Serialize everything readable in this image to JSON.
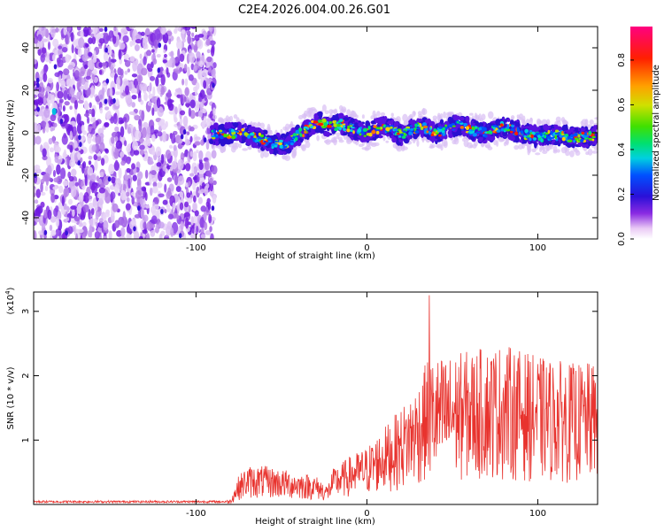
{
  "title": "C2E4.2026.004.00.26.G01",
  "chart_data": [
    {
      "type": "heatmap",
      "xlabel": "Height of straight line (km)",
      "ylabel": "Frequency (Hz)",
      "xlim": [
        -195,
        135
      ],
      "ylim": [
        -50,
        50
      ],
      "xticks": [
        -100,
        0,
        100
      ],
      "yticks": [
        -40,
        -20,
        0,
        20,
        40
      ],
      "noise_region_x": [
        -195,
        -89
      ],
      "signal_track_freq_hz": [
        [
          -92,
          0
        ],
        [
          -85,
          -1
        ],
        [
          -75,
          0
        ],
        [
          -65,
          -2
        ],
        [
          -55,
          -5
        ],
        [
          -50,
          -6
        ],
        [
          -45,
          -4
        ],
        [
          -40,
          -1
        ],
        [
          -33,
          3
        ],
        [
          -28,
          5
        ],
        [
          -22,
          3
        ],
        [
          -15,
          4
        ],
        [
          -8,
          2
        ],
        [
          0,
          0
        ],
        [
          10,
          3
        ],
        [
          20,
          -1
        ],
        [
          25,
          1
        ],
        [
          32,
          3
        ],
        [
          40,
          0
        ],
        [
          48,
          2
        ],
        [
          55,
          4
        ],
        [
          62,
          1
        ],
        [
          70,
          0
        ],
        [
          80,
          3
        ],
        [
          90,
          0
        ],
        [
          100,
          -2
        ],
        [
          110,
          -1
        ],
        [
          120,
          -2
        ],
        [
          128,
          -2
        ],
        [
          135,
          -1
        ]
      ],
      "colorbar": {
        "label": "Normalized spectral amplitude",
        "ticks": [
          "0.0",
          "0.2",
          "0.4",
          "0.6",
          "0.8"
        ],
        "range": [
          0,
          0.95
        ]
      }
    },
    {
      "type": "line",
      "xlabel": "Height of straight line (km)",
      "ylabel": "SNR (10 * v/v)",
      "scale_note": "(x10",
      "scale_exp": "4",
      "xlim": [
        -195,
        135
      ],
      "ylim": [
        0,
        3.3
      ],
      "xticks": [
        -100,
        0,
        100
      ],
      "yticks": [
        1,
        2,
        3
      ],
      "color": "#e8332e",
      "envelope": [
        [
          -195,
          0.05
        ],
        [
          -85,
          0.05
        ],
        [
          -80,
          0.08
        ],
        [
          -75,
          0.45
        ],
        [
          -70,
          0.6
        ],
        [
          -60,
          0.6
        ],
        [
          -50,
          0.55
        ],
        [
          -40,
          0.5
        ],
        [
          -30,
          0.45
        ],
        [
          -23,
          0.3
        ],
        [
          -20,
          0.55
        ],
        [
          -10,
          0.75
        ],
        [
          0,
          0.9
        ],
        [
          10,
          1.2
        ],
        [
          20,
          1.5
        ],
        [
          30,
          1.9
        ],
        [
          36,
          2.3
        ],
        [
          45,
          2.3
        ],
        [
          60,
          2.4
        ],
        [
          80,
          2.5
        ],
        [
          100,
          2.3
        ],
        [
          120,
          2.2
        ],
        [
          135,
          2.2
        ]
      ]
    }
  ]
}
